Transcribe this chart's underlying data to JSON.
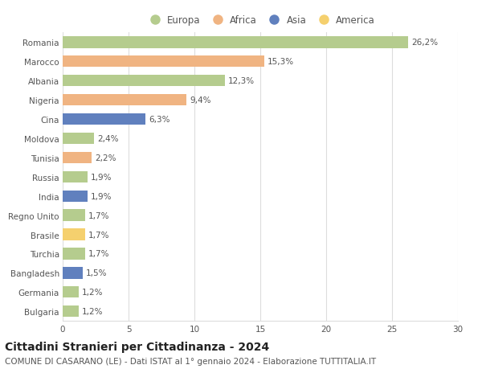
{
  "countries": [
    "Romania",
    "Marocco",
    "Albania",
    "Nigeria",
    "Cina",
    "Moldova",
    "Tunisia",
    "Russia",
    "India",
    "Regno Unito",
    "Brasile",
    "Turchia",
    "Bangladesh",
    "Germania",
    "Bulgaria"
  ],
  "values": [
    26.2,
    15.3,
    12.3,
    9.4,
    6.3,
    2.4,
    2.2,
    1.9,
    1.9,
    1.7,
    1.7,
    1.7,
    1.5,
    1.2,
    1.2
  ],
  "labels": [
    "26,2%",
    "15,3%",
    "12,3%",
    "9,4%",
    "6,3%",
    "2,4%",
    "2,2%",
    "1,9%",
    "1,9%",
    "1,7%",
    "1,7%",
    "1,7%",
    "1,5%",
    "1,2%",
    "1,2%"
  ],
  "continents": [
    "Europa",
    "Africa",
    "Europa",
    "Africa",
    "Asia",
    "Europa",
    "Africa",
    "Europa",
    "Asia",
    "Europa",
    "America",
    "Europa",
    "Asia",
    "Europa",
    "Europa"
  ],
  "colors": {
    "Europa": "#b5cc8e",
    "Africa": "#f0b482",
    "Asia": "#6080be",
    "America": "#f5d06e"
  },
  "legend_order": [
    "Europa",
    "Africa",
    "Asia",
    "America"
  ],
  "xlim": [
    0,
    30
  ],
  "xticks": [
    0,
    5,
    10,
    15,
    20,
    25,
    30
  ],
  "title": "Cittadini Stranieri per Cittadinanza - 2024",
  "subtitle": "COMUNE DI CASARANO (LE) - Dati ISTAT al 1° gennaio 2024 - Elaborazione TUTTITALIA.IT",
  "title_fontsize": 10,
  "subtitle_fontsize": 7.5,
  "label_fontsize": 7.5,
  "tick_fontsize": 7.5,
  "legend_fontsize": 8.5,
  "bg_color": "#ffffff",
  "grid_color": "#dddddd",
  "bar_height": 0.6
}
